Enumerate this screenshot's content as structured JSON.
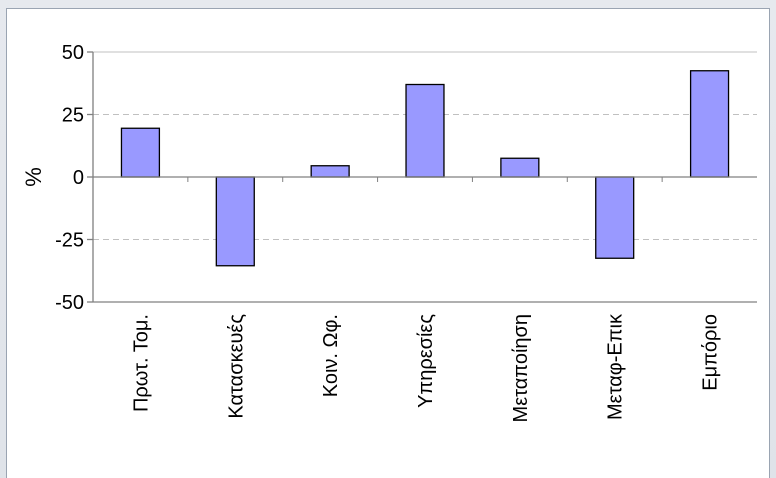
{
  "chart_data": {
    "type": "bar",
    "title": "",
    "xlabel": "",
    "ylabel": "%",
    "ylim": [
      -50,
      50
    ],
    "yticks": [
      50,
      25,
      0,
      -25,
      -50
    ],
    "yticklabels": [
      "50",
      "25",
      "0",
      "-25",
      "-50"
    ],
    "grid": true,
    "legend": "none",
    "categories": [
      "Πρωτ. Τομ.",
      "Κατασκευές",
      "Κοιν. Ωφ.",
      "Υπηρεσίες",
      "Μεταποίηση",
      "Μεταφ-Επικ",
      "Εμπόριο"
    ],
    "values": [
      19.5,
      -35.5,
      4.5,
      37,
      7.5,
      -32.5,
      42.5
    ],
    "colors": {
      "bar": "#9999ff",
      "bar_stroke": "#000000",
      "grid": "#c0c0c0",
      "axis": "#808080"
    }
  }
}
